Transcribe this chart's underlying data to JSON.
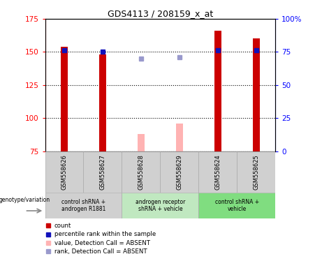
{
  "title": "GDS4113 / 208159_x_at",
  "samples": [
    "GSM558626",
    "GSM558627",
    "GSM558628",
    "GSM558629",
    "GSM558624",
    "GSM558625"
  ],
  "count_values": [
    154,
    148,
    null,
    null,
    166,
    160
  ],
  "count_absent_values": [
    null,
    null,
    88,
    96,
    null,
    null
  ],
  "rank_values_pct": [
    76,
    75,
    null,
    null,
    76,
    76
  ],
  "rank_absent_values_pct": [
    null,
    null,
    70,
    71,
    null,
    null
  ],
  "ylim_left": [
    75,
    175
  ],
  "ylim_right": [
    0,
    100
  ],
  "yticks_left": [
    75,
    100,
    125,
    150,
    175
  ],
  "yticks_right": [
    0,
    25,
    50,
    75,
    100
  ],
  "bar_color_present": "#cc0000",
  "bar_color_absent": "#ffb3b3",
  "rank_color_present": "#1111bb",
  "rank_color_absent": "#9999cc",
  "bar_width": 0.18,
  "rank_marker_size": 5,
  "geno_groups": [
    {
      "start": 0,
      "end": 2,
      "color": "#d0d0d0",
      "label": "control shRNA +\nandrogen R1881"
    },
    {
      "start": 2,
      "end": 4,
      "color": "#c0e8c0",
      "label": "androgen receptor\nshRNA + vehicle"
    },
    {
      "start": 4,
      "end": 6,
      "color": "#80dd80",
      "label": "control shRNA +\nvehicle"
    }
  ],
  "legend_items": [
    {
      "color": "#cc0000",
      "marker": "s",
      "label": "count"
    },
    {
      "color": "#1111bb",
      "marker": "s",
      "label": "percentile rank within the sample"
    },
    {
      "color": "#ffb3b3",
      "marker": "s",
      "label": "value, Detection Call = ABSENT"
    },
    {
      "color": "#9999cc",
      "marker": "s",
      "label": "rank, Detection Call = ABSENT"
    }
  ]
}
